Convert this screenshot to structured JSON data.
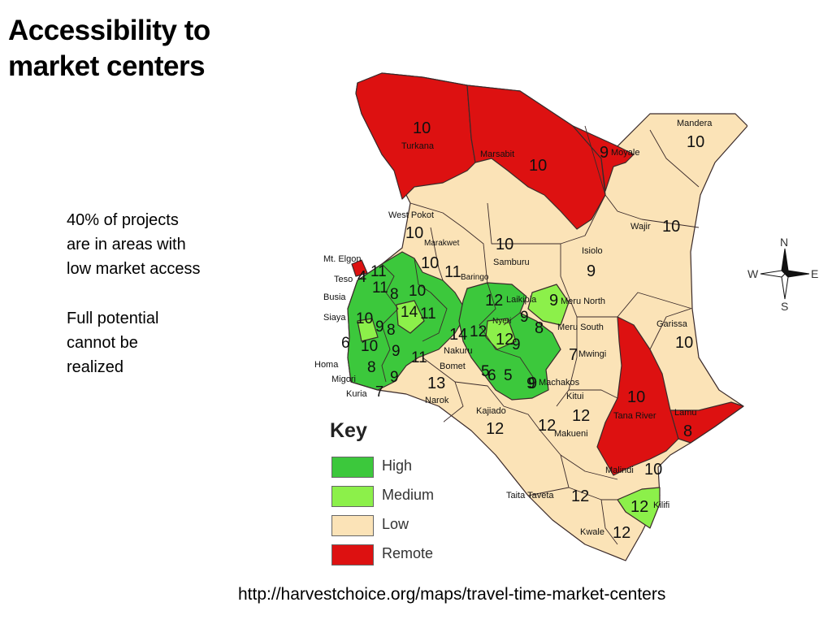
{
  "slide": {
    "title_line1": "Accessibility to",
    "title_line2": "market centers",
    "bullets": [
      [
        "40% of projects",
        "are in areas with",
        "low market access"
      ],
      [
        "Full potential",
        "cannot be",
        "realized"
      ]
    ],
    "source_url": "http://harvestchoice.org/maps/travel-time-market-centers"
  },
  "colors": {
    "high": "#3cc83c",
    "medium": "#8cf04a",
    "low": "#fbe3b7",
    "remote": "#dd1111",
    "border": "#3a2a2a"
  },
  "legend": {
    "title": "Key",
    "items": [
      {
        "label": "High",
        "color": "#3cc83c"
      },
      {
        "label": "Medium",
        "color": "#8cf04a"
      },
      {
        "label": "Low",
        "color": "#fbe3b7"
      },
      {
        "label": "Remote",
        "color": "#dd1111"
      }
    ]
  },
  "compass": {
    "n": "N",
    "s": "S",
    "e": "E",
    "w": "W"
  },
  "districts": {
    "turkana": {
      "name": "Turkana",
      "value": "10"
    },
    "marsabit": {
      "name": "Marsabit",
      "value": "10"
    },
    "moyale": {
      "name": "Moyale",
      "value": "9"
    },
    "mandera": {
      "name": "Mandera",
      "value": "10"
    },
    "wajir": {
      "name": "Wajir",
      "value": "10"
    },
    "west_pokot": {
      "name": "West Pokot",
      "value": "10"
    },
    "samburu": {
      "name": "Samburu",
      "value": "10"
    },
    "marakwet": {
      "name": "Marakwet",
      "value": "10"
    },
    "baringo": {
      "name": "Baringo",
      "value": "11"
    },
    "isiolo": {
      "name": "Isiolo",
      "value": "9"
    },
    "laikipia": {
      "name": "Laikipia",
      "value": "12"
    },
    "meru_north": {
      "name": "Meru North",
      "value": "9"
    },
    "meru_south": {
      "name": "Meru South",
      "value": "8"
    },
    "garissa": {
      "name": "Garissa",
      "value": "10"
    },
    "nakuru": {
      "name": "Nakuru",
      "value": "14"
    },
    "nyeri": {
      "name": "Nyeri",
      "value": "12"
    },
    "mwingi": {
      "name": "Mwingi",
      "value": "7"
    },
    "bomet": {
      "name": "Bomet",
      "value": "13"
    },
    "narok": {
      "name": "Narok",
      "value": ""
    },
    "machakos": {
      "name": "Machakos",
      "value": "9"
    },
    "kitui": {
      "name": "Kitui",
      "value": "12"
    },
    "kajiado": {
      "name": "Kajiado",
      "value": "12"
    },
    "makueni": {
      "name": "Makueni",
      "value": "12"
    },
    "tana_river": {
      "name": "Tana River",
      "value": "10"
    },
    "lamu": {
      "name": "Lamu",
      "value": "8"
    },
    "malindi": {
      "name": "Malindi",
      "value": "10"
    },
    "kilifi": {
      "name": "Kilifi",
      "value": "12"
    },
    "taita_taveta": {
      "name": "Taita Taveta",
      "value": "12"
    },
    "kwale": {
      "name": "Kwale",
      "value": "12"
    },
    "mt_elgon": {
      "name": "Mt. Elgon",
      "value": "4"
    },
    "teso": {
      "name": "Teso",
      "value": ""
    },
    "busia": {
      "name": "Busia",
      "value": ""
    },
    "siaya": {
      "name": "Siaya",
      "value": ""
    },
    "homa_bay": {
      "name": "Homa",
      "value": ""
    },
    "migori": {
      "name": "Migori",
      "value": ""
    },
    "kuria": {
      "name": "Kuria",
      "value": "7"
    }
  },
  "western_values": [
    "11",
    "11",
    "8",
    "10",
    "9",
    "14",
    "10",
    "6",
    "8",
    "10",
    "11",
    "9",
    "8",
    "9",
    "6",
    "5",
    "9",
    "9",
    "9",
    "11",
    "12",
    "5"
  ]
}
